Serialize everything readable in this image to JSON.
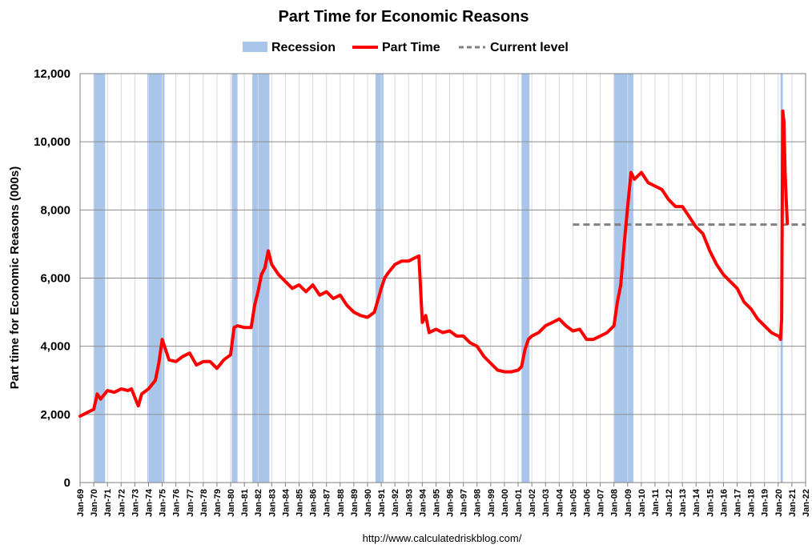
{
  "chart_data": {
    "type": "line",
    "title": "Part Time for Economic Reasons",
    "xlabel": "",
    "ylabel": "Part time for Economic Reasons (000s)",
    "ylim": [
      0,
      12000
    ],
    "yticks": [
      0,
      2000,
      4000,
      6000,
      8000,
      10000,
      12000
    ],
    "ytick_labels": [
      "0",
      "2,000",
      "4,000",
      "6,000",
      "8,000",
      "10,000",
      "12,000"
    ],
    "xlim": [
      "1969-01",
      "2022-01"
    ],
    "xtick_labels": [
      "Jan-69",
      "Jan-70",
      "Jan-71",
      "Jan-72",
      "Jan-73",
      "Jan-74",
      "Jan-75",
      "Jan-76",
      "Jan-77",
      "Jan-78",
      "Jan-79",
      "Jan-80",
      "Jan-81",
      "Jan-82",
      "Jan-83",
      "Jan-84",
      "Jan-85",
      "Jan-86",
      "Jan-87",
      "Jan-88",
      "Jan-89",
      "Jan-90",
      "Jan-91",
      "Jan-92",
      "Jan-93",
      "Jan-94",
      "Jan-95",
      "Jan-96",
      "Jan-97",
      "Jan-98",
      "Jan-99",
      "Jan-00",
      "Jan-01",
      "Jan-02",
      "Jan-03",
      "Jan-04",
      "Jan-05",
      "Jan-06",
      "Jan-07",
      "Jan-08",
      "Jan-09",
      "Jan-10",
      "Jan-11",
      "Jan-12",
      "Jan-13",
      "Jan-14",
      "Jan-15",
      "Jan-16",
      "Jan-17",
      "Jan-18",
      "Jan-19",
      "Jan-20",
      "Jan-21",
      "Jan-22"
    ],
    "grid": true,
    "legend_position": "top",
    "legend": [
      {
        "label": "Recession",
        "style": "box",
        "color": "#a9c6ea"
      },
      {
        "label": "Part Time",
        "style": "line",
        "color": "#ff0000"
      },
      {
        "label": "Current level",
        "style": "dash",
        "color": "#808080"
      }
    ],
    "recessions": [
      {
        "start": "1970-01",
        "end": "1970-11"
      },
      {
        "start": "1973-12",
        "end": "1975-03"
      },
      {
        "start": "1980-02",
        "end": "1980-07"
      },
      {
        "start": "1981-08",
        "end": "1982-11"
      },
      {
        "start": "1990-08",
        "end": "1991-03"
      },
      {
        "start": "2001-04",
        "end": "2001-11"
      },
      {
        "start": "2008-01",
        "end": "2009-06"
      },
      {
        "start": "2020-03",
        "end": "2020-05"
      }
    ],
    "current_level": {
      "value": 7570,
      "start": "2005-01",
      "end": "2022-01"
    },
    "series": [
      {
        "name": "Part Time",
        "color": "#ff0000",
        "x": [
          "1969-01",
          "1969-07",
          "1970-01",
          "1970-04",
          "1970-07",
          "1971-01",
          "1971-07",
          "1972-01",
          "1972-07",
          "1972-10",
          "1973-01",
          "1973-04",
          "1973-07",
          "1974-01",
          "1974-07",
          "1974-10",
          "1975-01",
          "1975-04",
          "1975-07",
          "1976-01",
          "1976-07",
          "1977-01",
          "1977-07",
          "1978-01",
          "1978-07",
          "1979-01",
          "1979-07",
          "1980-01",
          "1980-04",
          "1980-07",
          "1981-01",
          "1981-07",
          "1981-10",
          "1982-01",
          "1982-04",
          "1982-07",
          "1982-10",
          "1983-01",
          "1983-07",
          "1984-01",
          "1984-07",
          "1985-01",
          "1985-07",
          "1986-01",
          "1986-07",
          "1987-01",
          "1987-07",
          "1988-01",
          "1988-07",
          "1989-01",
          "1989-07",
          "1990-01",
          "1990-07",
          "1991-01",
          "1991-04",
          "1991-07",
          "1992-01",
          "1992-07",
          "1993-01",
          "1993-07",
          "1993-10",
          "1994-01",
          "1994-04",
          "1994-07",
          "1995-01",
          "1995-07",
          "1996-01",
          "1996-07",
          "1997-01",
          "1997-07",
          "1998-01",
          "1998-07",
          "1999-01",
          "1999-07",
          "2000-01",
          "2000-07",
          "2001-01",
          "2001-04",
          "2001-07",
          "2001-10",
          "2002-01",
          "2002-07",
          "2003-01",
          "2003-07",
          "2004-01",
          "2004-07",
          "2005-01",
          "2005-07",
          "2006-01",
          "2006-07",
          "2007-01",
          "2007-07",
          "2008-01",
          "2008-04",
          "2008-07",
          "2008-10",
          "2009-01",
          "2009-04",
          "2009-07",
          "2010-01",
          "2010-07",
          "2011-01",
          "2011-07",
          "2012-01",
          "2012-07",
          "2013-01",
          "2013-07",
          "2014-01",
          "2014-07",
          "2015-01",
          "2015-07",
          "2016-01",
          "2016-07",
          "2017-01",
          "2017-07",
          "2018-01",
          "2018-07",
          "2019-01",
          "2019-07",
          "2020-01",
          "2020-02",
          "2020-03",
          "2020-04",
          "2020-05",
          "2020-06",
          "2020-07",
          "2020-08",
          "2020-09"
        ],
        "values": [
          1950,
          2050,
          2150,
          2600,
          2450,
          2700,
          2650,
          2750,
          2700,
          2750,
          2500,
          2250,
          2600,
          2750,
          3000,
          3500,
          4200,
          3900,
          3600,
          3550,
          3700,
          3800,
          3450,
          3550,
          3550,
          3350,
          3600,
          3750,
          4550,
          4600,
          4550,
          4550,
          5200,
          5600,
          6100,
          6300,
          6800,
          6400,
          6100,
          5900,
          5700,
          5800,
          5600,
          5800,
          5500,
          5600,
          5400,
          5500,
          5200,
          5000,
          4900,
          4850,
          5000,
          5700,
          6000,
          6150,
          6400,
          6500,
          6500,
          6600,
          6650,
          4700,
          4900,
          4400,
          4500,
          4400,
          4450,
          4300,
          4300,
          4100,
          4000,
          3700,
          3500,
          3300,
          3250,
          3250,
          3300,
          3400,
          3900,
          4200,
          4300,
          4400,
          4600,
          4700,
          4800,
          4600,
          4450,
          4500,
          4200,
          4200,
          4300,
          4400,
          4600,
          5300,
          5800,
          7000,
          8100,
          9100,
          8900,
          9100,
          8800,
          8700,
          8600,
          8300,
          8100,
          8100,
          7800,
          7500,
          7300,
          6800,
          6400,
          6100,
          5900,
          5700,
          5300,
          5100,
          4800,
          4600,
          4400,
          4300,
          4300,
          4200,
          4800,
          10900,
          10600,
          9100,
          8300,
          7600
        ]
      }
    ],
    "source_text": "http://www.calculatedriskblog.com/"
  }
}
